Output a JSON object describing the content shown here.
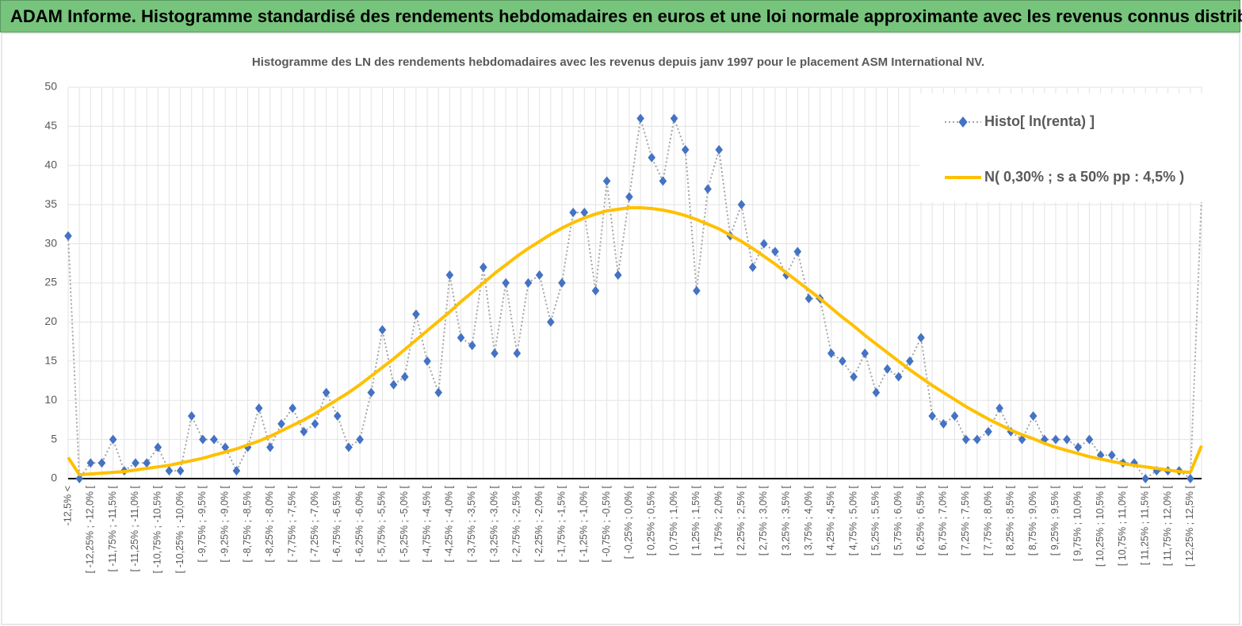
{
  "header": {
    "title": "ADAM Informe. Histogramme standardisé des rendements hebdomadaires en euros et une loi normale approximante avec les revenus connus distribués"
  },
  "chart_data": {
    "type": "line",
    "title": "Histogramme  des LN des rendements  hebdomadaires avec les revenus depuis janv 1997 pour le placement ASM International NV.",
    "categories": [
      "-12,5% <",
      null,
      "[ -12,25% ; -12,0% [",
      null,
      "[ -11,75% ; -11,5% [",
      null,
      "[ -11,25% ; -11,0% [",
      null,
      "[ -10,75% ; -10,5% [",
      null,
      "[ -10,25% ; -10,0% [",
      null,
      "[ -9,75% ; -9,5% [",
      null,
      "[ -9,25% ; -9,0% [",
      null,
      "[ -8,75% ; -8,5% [",
      null,
      "[ -8,25% ; -8,0% [",
      null,
      "[ -7,75% ; -7,5% [",
      null,
      "[ -7,25% ; -7,0% [",
      null,
      "[ -6,75% ; -6,5% [",
      null,
      "[ -6,25% ; -6,0% [",
      null,
      "[ -5,75% ; -5,5% [",
      null,
      "[ -5,25% ; -5,0% [",
      null,
      "[ -4,75% ; -4,5% [",
      null,
      "[ -4,25% ; -4,0% [",
      null,
      "[ -3,75% ; -3,5% [",
      null,
      "[ -3,25% ; -3,0% [",
      null,
      "[ -2,75% ; -2,5% [",
      null,
      "[ -2,25% ; -2,0% [",
      null,
      "[ -1,75% ; -1,5% [",
      null,
      "[ -1,25% ; -1,0% [",
      null,
      "[ -0,75% ; -0,5% [",
      null,
      "[ -0,25% ; 0,0% [",
      null,
      "[ 0,25% ; 0,5% [",
      null,
      "[ 0,75% ; 1,0% [",
      null,
      "[ 1,25% ; 1,5% [",
      null,
      "[ 1,75% ; 2,0% [",
      null,
      "[ 2,25% ; 2,5% [",
      null,
      "[ 2,75% ; 3,0% [",
      null,
      "[ 3,25% ; 3,5% [",
      null,
      "[ 3,75% ; 4,0% [",
      null,
      "[ 4,25% ; 4,5% [",
      null,
      "[ 4,75% ; 5,0% [",
      null,
      "[ 5,25% ; 5,5% [",
      null,
      "[ 5,75% ; 6,0% [",
      null,
      "[ 6,25% ; 6,5% [",
      null,
      "[ 6,75% ; 7,0% [",
      null,
      "[ 7,25% ; 7,5% [",
      null,
      "[ 7,75% ; 8,0% [",
      null,
      "[ 8,25% ; 8,5% [",
      null,
      "[ 8,75% ; 9,0% [",
      null,
      "[ 9,25% ; 9,5% [",
      null,
      "[ 9,75% ; 10,0% [",
      null,
      "[ 10,25% ; 10,5% [",
      null,
      "[ 10,75% ; 11,0% [",
      null,
      "[ 11,25% ; 11,5% [",
      null,
      "[ 11,75% ; 12,0% [",
      null,
      "[ 12,25% ; 12,5% [",
      null
    ],
    "series": [
      {
        "name": "Histo[ ln(renta) ]",
        "color": "#4472c4",
        "line_color": "#a5a5a5",
        "line_style": "dotted",
        "marker": "diamond",
        "values": [
          31,
          0,
          2,
          2,
          5,
          1,
          2,
          2,
          4,
          1,
          1,
          8,
          5,
          5,
          4,
          1,
          4,
          9,
          4,
          7,
          9,
          6,
          7,
          11,
          8,
          4,
          5,
          11,
          19,
          12,
          13,
          21,
          15,
          11,
          26,
          18,
          17,
          27,
          16,
          25,
          16,
          25,
          26,
          20,
          25,
          34,
          34,
          24,
          38,
          26,
          36,
          46,
          41,
          38,
          46,
          42,
          24,
          37,
          42,
          31,
          35,
          27,
          30,
          29,
          26,
          29,
          23,
          23,
          16,
          15,
          13,
          16,
          11,
          14,
          13,
          15,
          18,
          8,
          7,
          8,
          5,
          5,
          6,
          9,
          6,
          5,
          8,
          5,
          5,
          5,
          4,
          5,
          3,
          3,
          2,
          2,
          0,
          1,
          1,
          1,
          0,
          36
        ]
      },
      {
        "name": "N( 0,30% ; s a 50% pp : 4,5% )",
        "color": "#ffc000",
        "line_style": "solid",
        "marker": "none",
        "values": [
          2.7,
          0.5,
          0.6,
          0.7,
          0.8,
          0.9,
          1.1,
          1.3,
          1.5,
          1.7,
          2.0,
          2.3,
          2.6,
          3.0,
          3.4,
          3.8,
          4.3,
          4.8,
          5.4,
          6.1,
          6.8,
          7.5,
          8.3,
          9.2,
          10.1,
          11.0,
          12.0,
          13.1,
          14.2,
          15.3,
          16.5,
          17.7,
          18.9,
          20.1,
          21.3,
          22.6,
          23.8,
          25.0,
          26.2,
          27.3,
          28.4,
          29.4,
          30.3,
          31.2,
          32.0,
          32.7,
          33.3,
          33.8,
          34.2,
          34.4,
          34.6,
          34.6,
          34.5,
          34.3,
          34.0,
          33.6,
          33.1,
          32.5,
          31.9,
          31.1,
          30.3,
          29.4,
          28.4,
          27.4,
          26.3,
          25.2,
          24.1,
          23.0,
          21.8,
          20.6,
          19.5,
          18.3,
          17.2,
          16.1,
          15.0,
          13.9,
          12.9,
          11.9,
          11.0,
          10.1,
          9.2,
          8.4,
          7.6,
          6.9,
          6.2,
          5.6,
          5.1,
          4.5,
          4.0,
          3.6,
          3.2,
          2.8,
          2.5,
          2.2,
          1.9,
          1.7,
          1.5,
          1.3,
          1.1,
          0.9,
          0.8,
          4.2
        ]
      }
    ],
    "ylim": [
      0,
      50
    ],
    "yticks": [
      0,
      5,
      10,
      15,
      20,
      25,
      30,
      35,
      40,
      45,
      50
    ],
    "grid": true,
    "legend": "top-right"
  }
}
